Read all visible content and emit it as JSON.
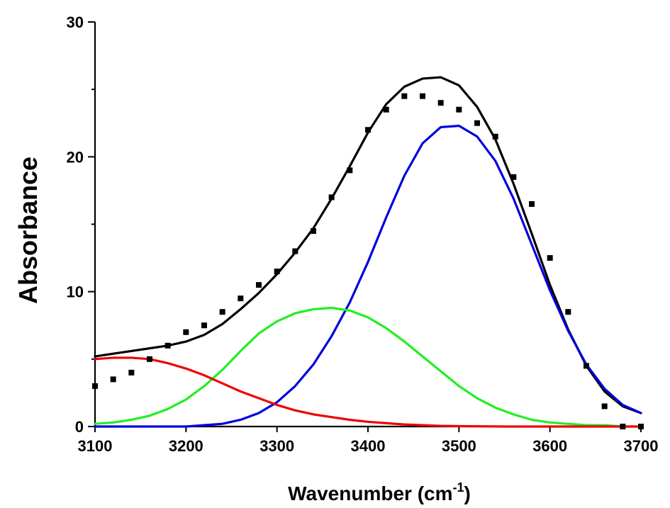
{
  "chart_data": {
    "type": "line",
    "xlabel": "Wavenumber (cm",
    "xlabel_sup": "-1",
    "xlabel_suffix": ")",
    "ylabel": "Absorbance",
    "xlim": [
      3100,
      3700
    ],
    "ylim": [
      0,
      30
    ],
    "x_ticks": [
      3100,
      3200,
      3300,
      3400,
      3500,
      3600,
      3700
    ],
    "y_ticks": [
      0,
      10,
      20,
      30
    ],
    "y_minor_ticks": [
      5,
      15,
      25
    ],
    "grid": false,
    "legend": "none",
    "series": [
      {
        "kind": "scatter",
        "marker": "square",
        "color": "#000000",
        "x": [
          3100,
          3120,
          3140,
          3160,
          3180,
          3200,
          3220,
          3240,
          3260,
          3280,
          3300,
          3320,
          3340,
          3360,
          3380,
          3400,
          3420,
          3440,
          3460,
          3480,
          3500,
          3520,
          3540,
          3560,
          3580,
          3600,
          3620,
          3640,
          3660,
          3680,
          3700
        ],
        "y": [
          3.0,
          3.5,
          4.0,
          5.0,
          6.0,
          7.0,
          7.5,
          8.5,
          9.5,
          10.5,
          11.5,
          13.0,
          14.5,
          17.0,
          19.0,
          22.0,
          23.5,
          24.5,
          24.5,
          24.0,
          23.5,
          22.5,
          21.5,
          18.5,
          16.5,
          12.5,
          8.5,
          4.5,
          1.5,
          0.0,
          0.0
        ]
      },
      {
        "kind": "line",
        "color": "#000000",
        "x": [
          3100,
          3120,
          3140,
          3160,
          3180,
          3200,
          3220,
          3240,
          3260,
          3280,
          3300,
          3320,
          3340,
          3360,
          3380,
          3400,
          3420,
          3440,
          3460,
          3480,
          3500,
          3520,
          3540,
          3560,
          3580,
          3600,
          3620,
          3640,
          3660,
          3680,
          3700
        ],
        "y": [
          5.2,
          5.4,
          5.6,
          5.8,
          6.0,
          6.3,
          6.8,
          7.6,
          8.7,
          9.9,
          11.3,
          12.9,
          14.7,
          16.9,
          19.3,
          21.8,
          23.9,
          25.2,
          25.8,
          25.9,
          25.3,
          23.7,
          21.3,
          18.0,
          14.3,
          10.5,
          7.2,
          4.5,
          2.6,
          1.5,
          1.0
        ]
      },
      {
        "kind": "line",
        "color": "#0000dd",
        "x": [
          3100,
          3150,
          3200,
          3220,
          3240,
          3260,
          3280,
          3300,
          3320,
          3340,
          3360,
          3380,
          3400,
          3420,
          3440,
          3460,
          3480,
          3500,
          3520,
          3540,
          3560,
          3580,
          3600,
          3620,
          3640,
          3660,
          3680,
          3700
        ],
        "y": [
          0.0,
          0.0,
          0.0,
          0.1,
          0.2,
          0.5,
          1.0,
          1.8,
          3.0,
          4.6,
          6.7,
          9.2,
          12.2,
          15.5,
          18.6,
          21.0,
          22.2,
          22.3,
          21.5,
          19.7,
          16.9,
          13.5,
          10.1,
          7.1,
          4.6,
          2.8,
          1.6,
          1.0
        ]
      },
      {
        "kind": "line",
        "color": "#22ee22",
        "x": [
          3100,
          3120,
          3140,
          3160,
          3180,
          3200,
          3220,
          3240,
          3260,
          3280,
          3300,
          3320,
          3340,
          3360,
          3380,
          3400,
          3420,
          3440,
          3460,
          3480,
          3500,
          3520,
          3540,
          3560,
          3580,
          3600,
          3620,
          3640,
          3660,
          3680,
          3700
        ],
        "y": [
          0.2,
          0.3,
          0.5,
          0.8,
          1.3,
          2.0,
          3.0,
          4.2,
          5.6,
          6.9,
          7.8,
          8.4,
          8.7,
          8.8,
          8.6,
          8.1,
          7.3,
          6.3,
          5.2,
          4.1,
          3.0,
          2.1,
          1.4,
          0.9,
          0.5,
          0.3,
          0.2,
          0.1,
          0.1,
          0.0,
          0.0
        ]
      },
      {
        "kind": "line",
        "color": "#ee0000",
        "x": [
          3100,
          3120,
          3140,
          3160,
          3180,
          3200,
          3220,
          3240,
          3260,
          3280,
          3300,
          3320,
          3340,
          3360,
          3380,
          3400,
          3420,
          3440,
          3460,
          3480,
          3500,
          3550,
          3600,
          3650,
          3700
        ],
        "y": [
          5.0,
          5.1,
          5.1,
          5.0,
          4.7,
          4.3,
          3.8,
          3.2,
          2.6,
          2.1,
          1.6,
          1.2,
          0.9,
          0.7,
          0.5,
          0.35,
          0.25,
          0.15,
          0.1,
          0.05,
          0.03,
          0.0,
          0.0,
          0.0,
          0.0
        ]
      }
    ]
  }
}
